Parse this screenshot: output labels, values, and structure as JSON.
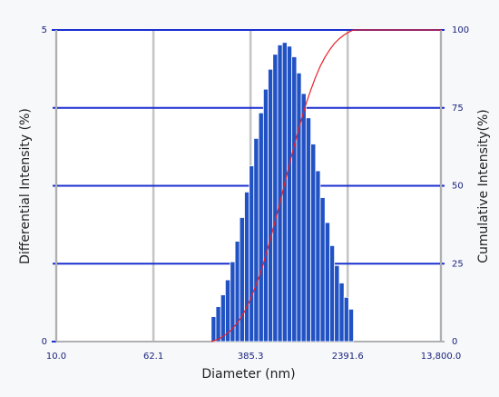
{
  "chart_data": {
    "type": "histogram",
    "x_label": "Diameter (nm)",
    "y_label": "Differential Intensity (%)",
    "y2_label": "Cumulative Intensity(%)",
    "xscale": "log",
    "xlim": [
      10,
      13800
    ],
    "xticks": [
      {
        "value": 10,
        "label": "10.0"
      },
      {
        "value": 62.1,
        "label": "62.1"
      },
      {
        "value": 385.3,
        "label": "385.3"
      },
      {
        "value": 2391.6,
        "label": "2391.6"
      },
      {
        "value": 13800,
        "label": "13,800.0"
      }
    ],
    "ylim": [
      0,
      5
    ],
    "yticks": [
      0,
      5
    ],
    "y2lim": [
      0,
      100
    ],
    "y2ticks": [
      0,
      25,
      50,
      75,
      100
    ],
    "grid": true,
    "series": [
      {
        "type": "histogram",
        "color": "#2152c4",
        "bins": [
          184,
          201,
          220,
          240,
          263,
          288,
          314,
          344,
          376,
          410,
          449,
          491,
          536,
          586,
          641,
          701,
          766,
          837,
          916,
          1000,
          1094,
          1197,
          1309,
          1429,
          1563,
          1710,
          1866,
          2042,
          2234,
          2438,
          2667
        ],
        "values": [
          0.4,
          0.56,
          0.75,
          0.99,
          1.28,
          1.61,
          1.99,
          2.4,
          2.82,
          3.26,
          3.67,
          4.05,
          4.37,
          4.61,
          4.76,
          4.8,
          4.74,
          4.57,
          4.31,
          3.98,
          3.59,
          3.17,
          2.74,
          2.31,
          1.91,
          1.54,
          1.22,
          0.94,
          0.71,
          0.52
        ]
      },
      {
        "type": "line",
        "color": "#e8202a",
        "axis": "y2",
        "x": [
          184,
          201,
          220,
          240,
          263,
          288,
          314,
          344,
          376,
          410,
          449,
          491,
          536,
          586,
          641,
          701,
          766,
          837,
          916,
          1000,
          1094,
          1197,
          1309,
          1429,
          1563,
          1710,
          1866,
          2042,
          2234,
          2438,
          2667,
          13800
        ],
        "values": [
          0,
          0.5,
          1.2,
          2.2,
          3.4,
          5.1,
          7.1,
          9.6,
          12.7,
          16.3,
          20.4,
          25.1,
          30.3,
          35.8,
          41.7,
          47.8,
          53.9,
          59.9,
          65.7,
          71.2,
          76.3,
          80.8,
          84.9,
          88.4,
          91.3,
          93.7,
          95.7,
          97.2,
          98.4,
          99.3,
          100,
          100
        ]
      }
    ]
  }
}
